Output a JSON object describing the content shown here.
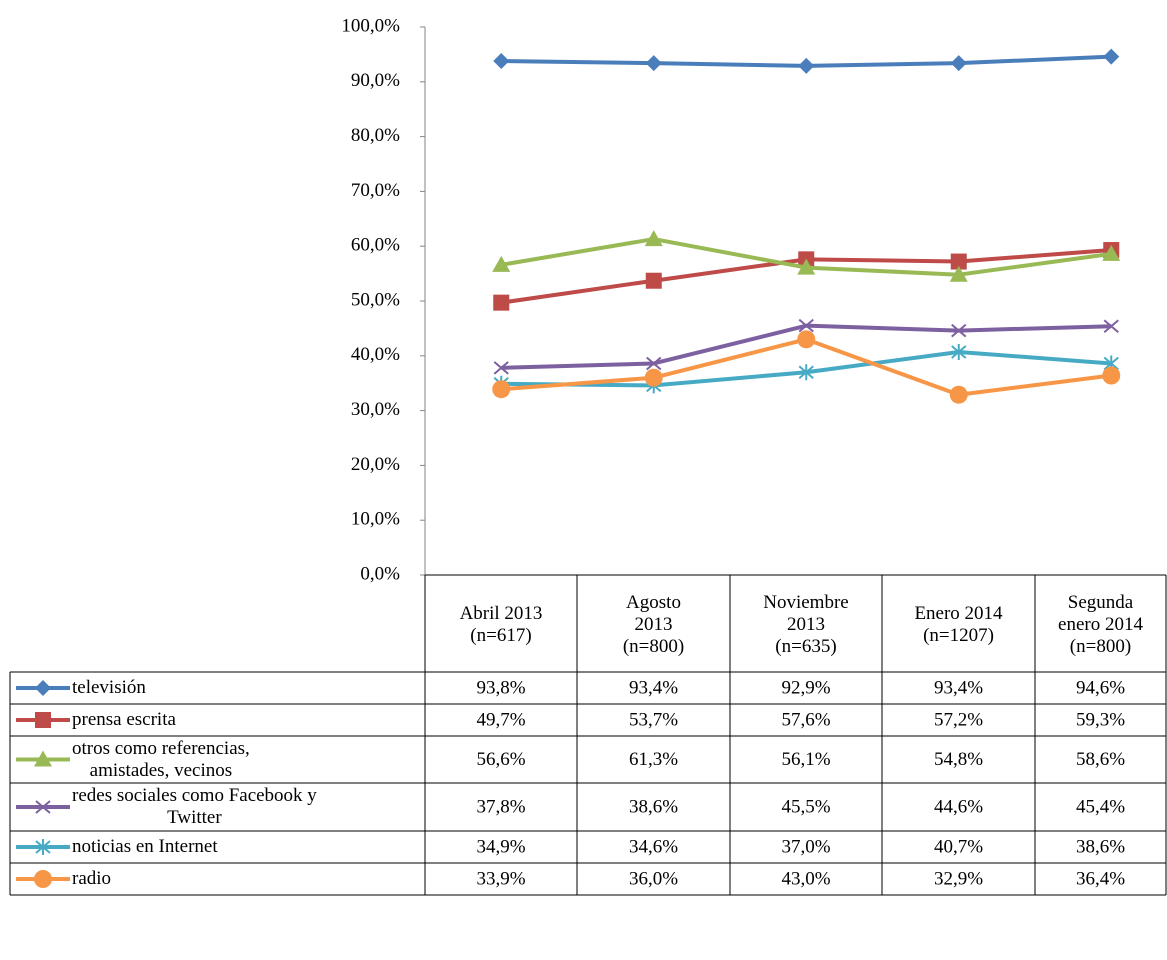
{
  "chart_data": {
    "type": "line",
    "categories": [
      "Abril 2013\n(n=617)",
      "Agosto\n2013\n(n=800)",
      "Noviembre\n2013\n(n=635)",
      "Enero 2014\n(n=1207)",
      "Segunda\nenero 2014\n(n=800)"
    ],
    "ylim": [
      0,
      100
    ],
    "yticks": [
      {
        "value": 0,
        "label": "0,0%"
      },
      {
        "value": 10,
        "label": "10,0%"
      },
      {
        "value": 20,
        "label": "20,0%"
      },
      {
        "value": 30,
        "label": "30,0%"
      },
      {
        "value": 40,
        "label": "40,0%"
      },
      {
        "value": 50,
        "label": "50,0%"
      },
      {
        "value": 60,
        "label": "60,0%"
      },
      {
        "value": 70,
        "label": "70,0%"
      },
      {
        "value": 80,
        "label": "80,0%"
      },
      {
        "value": 90,
        "label": "90,0%"
      },
      {
        "value": 100,
        "label": "100,0%"
      }
    ],
    "grid": false,
    "series": [
      {
        "name": "televisión",
        "color": "#4a7ebb",
        "marker": "diamond",
        "values": [
          93.8,
          93.4,
          92.9,
          93.4,
          94.6
        ],
        "value_labels": [
          "93,8%",
          "93,4%",
          "92,9%",
          "93,4%",
          "94,6%"
        ]
      },
      {
        "name": "prensa escrita",
        "color": "#be4b48",
        "marker": "square",
        "values": [
          49.7,
          53.7,
          57.6,
          57.2,
          59.3
        ],
        "value_labels": [
          "49,7%",
          "53,7%",
          "57,6%",
          "57,2%",
          "59,3%"
        ]
      },
      {
        "name": "otros como referencias,\namistades, vecinos",
        "color": "#98b954",
        "marker": "triangle",
        "values": [
          56.6,
          61.3,
          56.1,
          54.8,
          58.6
        ],
        "value_labels": [
          "56,6%",
          "61,3%",
          "56,1%",
          "54,8%",
          "58,6%"
        ]
      },
      {
        "name": "redes sociales como Facebook y\nTwitter",
        "color": "#7d60a0",
        "marker": "x",
        "values": [
          37.8,
          38.6,
          45.5,
          44.6,
          45.4
        ],
        "value_labels": [
          "37,8%",
          "38,6%",
          "45,5%",
          "44,6%",
          "45,4%"
        ]
      },
      {
        "name": "noticias en Internet",
        "color": "#46aac5",
        "marker": "star",
        "values": [
          34.9,
          34.6,
          37.0,
          40.7,
          38.6
        ],
        "value_labels": [
          "34,9%",
          "34,6%",
          "37,0%",
          "40,7%",
          "38,6%"
        ]
      },
      {
        "name": "radio",
        "color": "#f79646",
        "marker": "circle",
        "values": [
          33.9,
          36.0,
          43.0,
          32.9,
          36.4
        ],
        "value_labels": [
          "33,9%",
          "36,0%",
          "43,0%",
          "32,9%",
          "36,4%"
        ]
      }
    ]
  }
}
